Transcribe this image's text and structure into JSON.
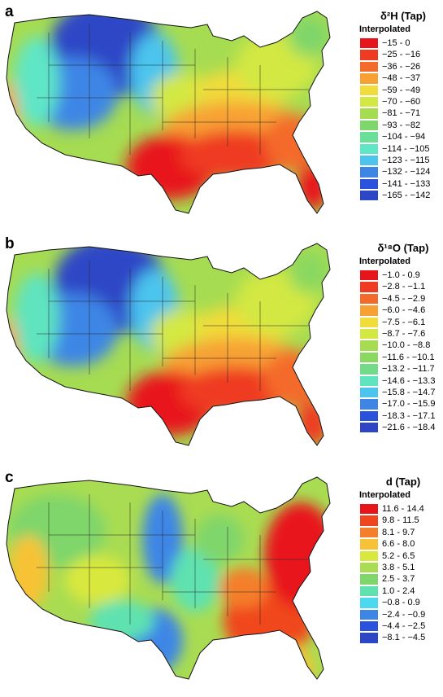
{
  "panels": [
    {
      "letter": "a",
      "title": "δ²H (Tap)",
      "subtitle": "Interpolated",
      "legend": [
        {
          "range": "−15 - 0",
          "color": "#e8141b"
        },
        {
          "range": "−25 - −16",
          "color": "#ef3b22"
        },
        {
          "range": "−36 - −26",
          "color": "#f46a2a"
        },
        {
          "range": "−48 - −37",
          "color": "#f7a134"
        },
        {
          "range": "−59 - −49",
          "color": "#f0dc3a"
        },
        {
          "range": "−70 - −60",
          "color": "#d3e842"
        },
        {
          "range": "−81 - −71",
          "color": "#a6dc52"
        },
        {
          "range": "−93 - −82",
          "color": "#7fd66a"
        },
        {
          "range": "−104 - −94",
          "color": "#6adf98"
        },
        {
          "range": "−114 - −105",
          "color": "#5fe6c6"
        },
        {
          "range": "−123 - −115",
          "color": "#4cc4ee"
        },
        {
          "range": "−132 - −124",
          "color": "#3d86e6"
        },
        {
          "range": "−141 - −133",
          "color": "#2a52dd"
        },
        {
          "range": "−165 - −142",
          "color": "#2d46c6"
        }
      ]
    },
    {
      "letter": "b",
      "title": "δ¹⁸O (Tap)",
      "subtitle": "Interpolated",
      "legend": [
        {
          "range": "−1.0 - 0.9",
          "color": "#e8141b"
        },
        {
          "range": "−2.8 - −1.1",
          "color": "#ef3b22"
        },
        {
          "range": "−4.5 - −2.9",
          "color": "#f46a2a"
        },
        {
          "range": "−6.0 - −4.6",
          "color": "#f7a134"
        },
        {
          "range": "−7.5 - −6.1",
          "color": "#f0dc3a"
        },
        {
          "range": "−8.7 - −7.6",
          "color": "#d3e842"
        },
        {
          "range": "−10.0 - −8.8",
          "color": "#a6dc52"
        },
        {
          "range": "−11.6 - −10.1",
          "color": "#8ad860"
        },
        {
          "range": "−13.2 - −11.7",
          "color": "#72da88"
        },
        {
          "range": "−14.6 - −13.3",
          "color": "#5fe4bf"
        },
        {
          "range": "−15.8 - −14.7",
          "color": "#4cc4ee"
        },
        {
          "range": "−17.0 - −15.9",
          "color": "#3d86e6"
        },
        {
          "range": "−18.3 - −17.1",
          "color": "#2a52dd"
        },
        {
          "range": "−21.6 - −18.4",
          "color": "#2d46c6"
        }
      ]
    },
    {
      "letter": "c",
      "title": "d (Tap)",
      "subtitle": "Interpolated",
      "legend": [
        {
          "range": "11.6 - 14.4",
          "color": "#e8141b"
        },
        {
          "range": "9.8 - 11.5",
          "color": "#f0461f"
        },
        {
          "range": "8.1 - 9.7",
          "color": "#f47e2b"
        },
        {
          "range": "6.6 - 8.0",
          "color": "#f7c236"
        },
        {
          "range": "5.2 - 6.5",
          "color": "#d9e83e"
        },
        {
          "range": "3.8 - 5.1",
          "color": "#a9dc52"
        },
        {
          "range": "2.5 - 3.7",
          "color": "#7fd66a"
        },
        {
          "range": "1.0 - 2.4",
          "color": "#5fe2b0"
        },
        {
          "range": "−0.8 - 0.9",
          "color": "#4cd8ee"
        },
        {
          "range": "−2.4 - −0.9",
          "color": "#3d86e6"
        },
        {
          "range": "−4.4 - −2.5",
          "color": "#2a52dd"
        },
        {
          "range": "−8.1 - −4.5",
          "color": "#2d46c6"
        }
      ]
    }
  ]
}
